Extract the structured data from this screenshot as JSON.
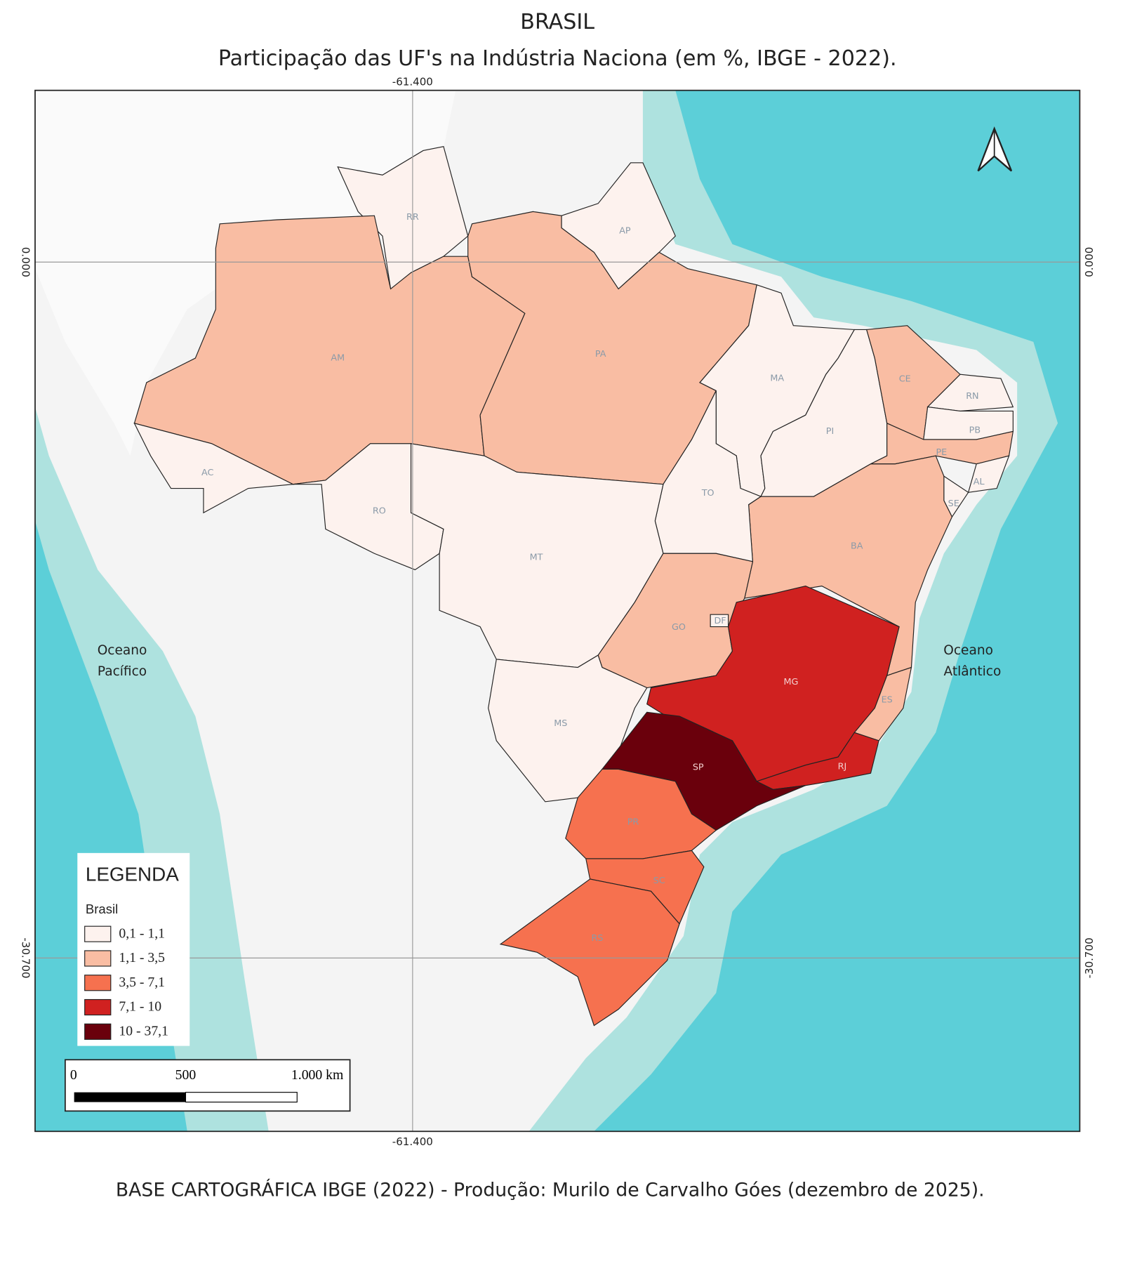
{
  "header": {
    "title": "BRASIL",
    "subtitle": "Participação das UF's na Indústria Naciona (em %, IBGE - 2022)."
  },
  "grid": {
    "longitude": "-61.400",
    "latitude_north": "0.000",
    "latitude_south": "-30.700"
  },
  "oceans": {
    "pacific": [
      "Oceano",
      "Pacífico"
    ],
    "atlantic": [
      "Oceano",
      "Atlântico"
    ]
  },
  "states": [
    {
      "abbr": "RR",
      "class": 0
    },
    {
      "abbr": "AP",
      "class": 0
    },
    {
      "abbr": "AM",
      "class": 1
    },
    {
      "abbr": "PA",
      "class": 1
    },
    {
      "abbr": "MA",
      "class": 0
    },
    {
      "abbr": "PI",
      "class": 0
    },
    {
      "abbr": "CE",
      "class": 1
    },
    {
      "abbr": "RN",
      "class": 0
    },
    {
      "abbr": "PB",
      "class": 0
    },
    {
      "abbr": "PE",
      "class": 1
    },
    {
      "abbr": "AL",
      "class": 0
    },
    {
      "abbr": "SE",
      "class": 0
    },
    {
      "abbr": "BA",
      "class": 1
    },
    {
      "abbr": "TO",
      "class": 0
    },
    {
      "abbr": "AC",
      "class": 0
    },
    {
      "abbr": "RO",
      "class": 0
    },
    {
      "abbr": "MT",
      "class": 0
    },
    {
      "abbr": "GO",
      "class": 1
    },
    {
      "abbr": "DF",
      "class": 0
    },
    {
      "abbr": "MS",
      "class": 0
    },
    {
      "abbr": "MG",
      "class": 3
    },
    {
      "abbr": "ES",
      "class": 1
    },
    {
      "abbr": "RJ",
      "class": 3
    },
    {
      "abbr": "SP",
      "class": 4
    },
    {
      "abbr": "PR",
      "class": 2
    },
    {
      "abbr": "SC",
      "class": 2
    },
    {
      "abbr": "RS",
      "class": 2
    }
  ],
  "legend": {
    "title": "LEGENDA",
    "subtitle": "Brasil",
    "classes": [
      {
        "label": "0,1 - 1,1",
        "color": "#fdf2ee"
      },
      {
        "label": "1,1 - 3,5",
        "color": "#f9bda3"
      },
      {
        "label": "3,5 - 7,1",
        "color": "#f6714f"
      },
      {
        "label": "7,1 - 10",
        "color": "#d02120"
      },
      {
        "label": "10 - 37,1",
        "color": "#6a000c"
      }
    ]
  },
  "scale_bar": {
    "ticks": [
      "0",
      "500",
      "1.000 km"
    ]
  },
  "footer": "BASE CARTOGRÁFICA IBGE (2022) - Produção: Murilo de Carvalho Góes (dezembro de 2025)."
}
